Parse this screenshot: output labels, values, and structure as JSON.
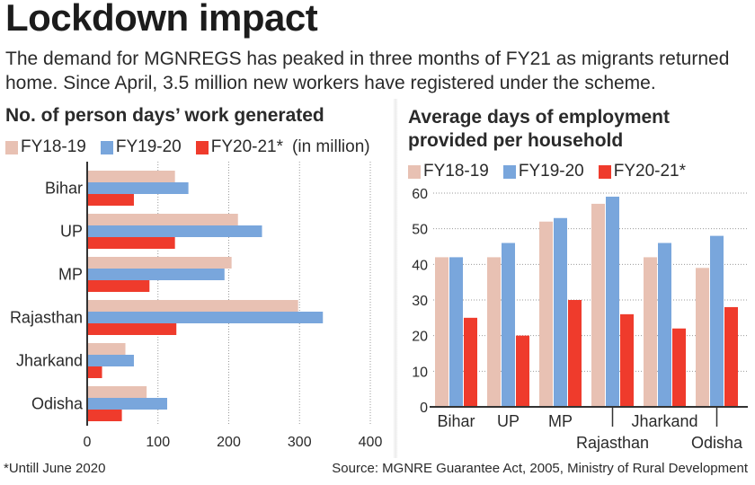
{
  "headline": "Lockdown impact",
  "dek": "The demand for MGNREGS has peaked in three months of FY21 as migrants returned home. Since April, 3.5 million new workers have registered under the scheme.",
  "colors": {
    "FY18-19": "#e8c1b3",
    "FY19-20": "#79a6dc",
    "FY20-21*": "#ef3b2c"
  },
  "footnote": "*Untill June 2020",
  "source": "Source: MGNRE Guarantee Act, 2005, Ministry of Rural Development",
  "chart_data": [
    {
      "type": "bar",
      "orientation": "horizontal",
      "title": "No. of person days’ work generated",
      "unit_note": "(in million)",
      "categories": [
        "Bihar",
        "UP",
        "MP",
        "Rajasthan",
        "Jharkand",
        "Odisha"
      ],
      "series": [
        {
          "name": "FY18-19",
          "values": [
            124,
            213,
            204,
            298,
            54,
            84
          ]
        },
        {
          "name": "FY19-20",
          "values": [
            143,
            247,
            194,
            333,
            66,
            113
          ]
        },
        {
          "name": "FY20-21*",
          "values": [
            66,
            124,
            88,
            126,
            21,
            49
          ]
        }
      ],
      "xlim": [
        0,
        400
      ],
      "xticks": [
        0,
        100,
        200,
        300,
        400
      ],
      "grid": true,
      "legend": "top"
    },
    {
      "type": "bar",
      "orientation": "vertical",
      "title": "Average days of employment provided per household",
      "categories": [
        "Bihar",
        "UP",
        "MP",
        "Rajasthan",
        "Jharkand",
        "Odisha"
      ],
      "series": [
        {
          "name": "FY18-19",
          "values": [
            42,
            42,
            52,
            57,
            42,
            39
          ]
        },
        {
          "name": "FY19-20",
          "values": [
            42,
            46,
            53,
            59,
            46,
            48
          ]
        },
        {
          "name": "FY20-21*",
          "values": [
            25,
            20,
            30,
            26,
            22,
            28
          ]
        }
      ],
      "ylim": [
        0,
        60
      ],
      "yticks": [
        0,
        10,
        20,
        30,
        40,
        50,
        60
      ],
      "grid": true,
      "legend": "top"
    }
  ]
}
